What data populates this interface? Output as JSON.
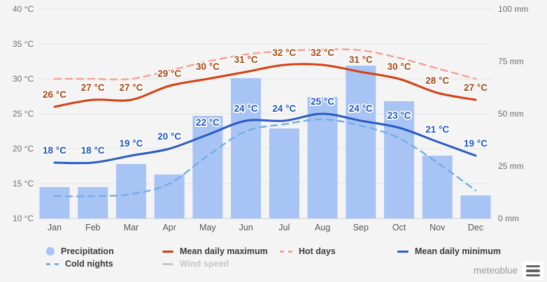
{
  "chart_data": {
    "type": "bar",
    "title": "",
    "categories": [
      "Jan",
      "Feb",
      "Mar",
      "Apr",
      "May",
      "Jun",
      "Jul",
      "Aug",
      "Sep",
      "Oct",
      "Nov",
      "Dec"
    ],
    "left_axis": {
      "unit": "°C",
      "min": 10,
      "max": 40,
      "ticks": [
        {
          "label": "40 °C",
          "value": 40
        },
        {
          "label": "35 °C",
          "value": 35
        },
        {
          "label": "30 °C",
          "value": 30
        },
        {
          "label": "25 °C",
          "value": 25
        },
        {
          "label": "20 °C",
          "value": 20
        },
        {
          "label": "15 °C",
          "value": 15
        },
        {
          "label": "10 °C",
          "value": 10
        }
      ]
    },
    "right_axis": {
      "unit": "mm",
      "min": 0,
      "max": 100,
      "ticks": [
        {
          "label": "100 mm",
          "value": 100
        },
        {
          "label": "75 mm",
          "value": 75
        },
        {
          "label": "50 mm",
          "value": 50
        },
        {
          "label": "25 mm",
          "value": 25
        },
        {
          "label": "0 mm",
          "value": 0
        }
      ]
    },
    "series": [
      {
        "name": "Precipitation",
        "type": "bar",
        "axis": "right",
        "unit": "mm",
        "color": "#a7c4f4",
        "values": [
          15,
          15,
          26,
          21,
          49,
          67,
          43,
          58,
          73,
          56,
          30,
          11
        ]
      },
      {
        "name": "Hot days",
        "type": "line",
        "style": "dashed",
        "axis": "left",
        "unit": "°C",
        "color": "#f5a396",
        "values": [
          30,
          30,
          30,
          31.2,
          32.5,
          33.5,
          34,
          34.2,
          34.1,
          33,
          31.5,
          30
        ]
      },
      {
        "name": "Cold nights",
        "type": "line",
        "style": "dashed",
        "axis": "left",
        "unit": "°C",
        "color": "#76aee8",
        "values": [
          13.2,
          13.2,
          13.5,
          15,
          19,
          22.5,
          23.5,
          24.2,
          23.3,
          21.5,
          18,
          14
        ]
      },
      {
        "name": "Mean daily maximum",
        "type": "line",
        "style": "solid",
        "axis": "left",
        "unit": "°C",
        "color": "#d5400f",
        "label_color": "#a8470e",
        "values": [
          26,
          27,
          27,
          29,
          30,
          31,
          32,
          32,
          31,
          30,
          28,
          27
        ],
        "labels": [
          "26 °C",
          "27 °C",
          "27 °C",
          "29 °C",
          "30 °C",
          "31 °C",
          "32 °C",
          "32 °C",
          "31 °C",
          "30 °C",
          "28 °C",
          "27 °C"
        ]
      },
      {
        "name": "Mean daily minimum",
        "type": "line",
        "style": "solid",
        "axis": "left",
        "unit": "°C",
        "color": "#2a5ac6",
        "label_color": "#1d55cc",
        "values": [
          18,
          18,
          19,
          20,
          22,
          24,
          24,
          25,
          24,
          23,
          21,
          19
        ],
        "labels": [
          "18 °C",
          "18 °C",
          "19 °C",
          "20 °C",
          "22 °C",
          "24 °C",
          "24 °C",
          "25 °C",
          "24 °C",
          "23 °C",
          "21 °C",
          "19 °C"
        ]
      },
      {
        "name": "Wind speed",
        "type": "line",
        "style": "solid",
        "axis": "left",
        "color": "#c6c6c6",
        "visible": false
      }
    ],
    "grid": true,
    "legend_position": "bottom"
  },
  "legend": {
    "items": [
      {
        "label": "Precipitation",
        "swatch": "circle",
        "color": "#a7c4f4",
        "disabled": false
      },
      {
        "label": "Mean daily maximum",
        "swatch": "solid-line",
        "color": "#d5400f",
        "disabled": false
      },
      {
        "label": "Hot days",
        "swatch": "dashed-line",
        "color": "#f5a396",
        "disabled": false
      },
      {
        "label": "Mean daily minimum",
        "swatch": "solid-line",
        "color": "#2a5ac6",
        "disabled": false
      },
      {
        "label": "Cold nights",
        "swatch": "dashed-line",
        "color": "#76aee8",
        "disabled": false
      },
      {
        "label": "Wind speed",
        "swatch": "solid-line",
        "color": "#c6c6c6",
        "disabled": true
      }
    ]
  },
  "footer": {
    "brand": "meteoblue"
  },
  "colors": {
    "background": "#f4f4f4",
    "gridline": "#e4e4e4",
    "axis_line": "#cfcfcf",
    "tick_text": "#6f6f6f",
    "month_text": "#565656",
    "legend_text": "#3b3b3b",
    "legend_disabled_text": "#c6c6c6",
    "brand_text": "#999c9e",
    "menu_icon": "#636363"
  }
}
